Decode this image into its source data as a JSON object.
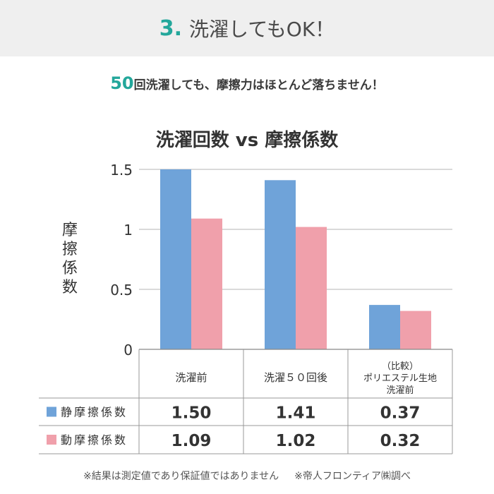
{
  "header": {
    "number": "3.",
    "title": "洗濯してもOK！"
  },
  "subtitle": {
    "accent": "50",
    "text": "回洗濯しても、摩擦力はほとんど落ちません！"
  },
  "colors": {
    "accent": "#23a79b",
    "static": "#6fa3d9",
    "dynamic": "#f0a0ab",
    "grid": "#b5b5b5",
    "header_bg": "#efefef"
  },
  "chart_data": {
    "type": "bar",
    "title": "洗濯回数 vs 摩擦係数",
    "ylabel": "摩擦係数",
    "xlabel": "",
    "ylim": [
      0,
      1.5
    ],
    "yticks": [
      "0",
      "0.5",
      "1",
      "1.5"
    ],
    "categories": [
      [
        "洗濯前"
      ],
      [
        "洗濯５０回後"
      ],
      [
        "（比較）",
        "ポリエステル生地",
        "洗濯前"
      ]
    ],
    "series": [
      {
        "name": "静摩擦係数",
        "values": [
          1.5,
          1.41,
          0.37
        ],
        "labels": [
          "1.50",
          "1.41",
          "0.37"
        ],
        "color": "#6fa3d9"
      },
      {
        "name": "動摩擦係数",
        "values": [
          1.09,
          1.02,
          0.32
        ],
        "labels": [
          "1.09",
          "1.02",
          "0.32"
        ],
        "color": "#f0a0ab"
      }
    ]
  },
  "footnote": {
    "left": "※結果は測定値であり保証値ではありません",
    "right": "※帝人フロンティア㈱調べ"
  }
}
